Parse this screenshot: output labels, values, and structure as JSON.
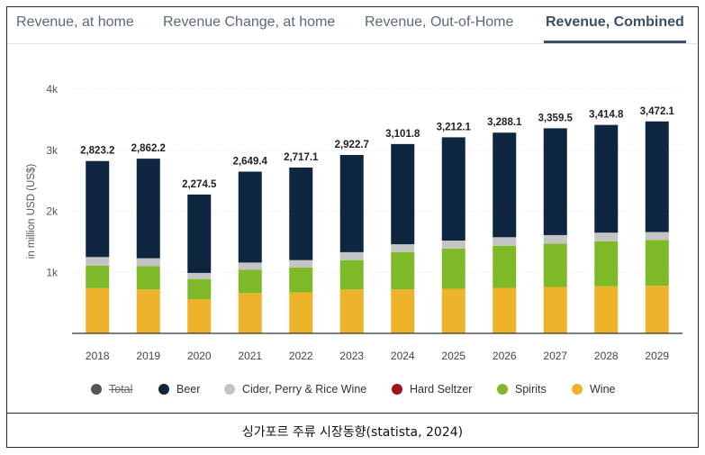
{
  "tabs": [
    {
      "label": "Revenue, at home",
      "active": false
    },
    {
      "label": "Revenue Change, at home",
      "active": false
    },
    {
      "label": "Revenue, Out-of-Home",
      "active": false
    },
    {
      "label": "Revenue, Combined",
      "active": true
    }
  ],
  "caption": "싱가포르 주류 시장동향(statista, 2024)",
  "colors": {
    "total": "#555555",
    "beer": "#0f2641",
    "cider": "#c4c4c4",
    "hard_seltzer": "#a1121a",
    "spirits": "#7eb928",
    "wine": "#edb32a"
  },
  "legend": [
    {
      "label": "Total",
      "color": "#555555",
      "struck": true
    },
    {
      "label": "Beer",
      "color": "#0f2641",
      "struck": false
    },
    {
      "label": "Cider, Perry & Rice Wine",
      "color": "#c4c4c4",
      "struck": false
    },
    {
      "label": "Hard Seltzer",
      "color": "#a1121a",
      "struck": false
    },
    {
      "label": "Spirits",
      "color": "#7eb928",
      "struck": false
    },
    {
      "label": "Wine",
      "color": "#edb32a",
      "struck": false
    }
  ],
  "chart_data": {
    "type": "bar",
    "stacked": true,
    "ylabel": "in million USD (US$)",
    "ylim": [
      0,
      4000
    ],
    "yticks": [
      {
        "value": 1000,
        "label": "1k"
      },
      {
        "value": 2000,
        "label": "2k"
      },
      {
        "value": 3000,
        "label": "3k"
      },
      {
        "value": 4000,
        "label": "4k"
      }
    ],
    "categories": [
      "2018",
      "2019",
      "2020",
      "2021",
      "2022",
      "2023",
      "2024",
      "2025",
      "2026",
      "2027",
      "2028",
      "2029"
    ],
    "totals_labels": [
      "2,823.2",
      "2,862.2",
      "2,274.5",
      "2,649.4",
      "2,717.1",
      "2,922.7",
      "3,101.8",
      "3,212.1",
      "3,288.1",
      "3,359.5",
      "3,414.8",
      "3,472.1"
    ],
    "totals": [
      2823.2,
      2862.2,
      2274.5,
      2649.4,
      2717.1,
      2922.7,
      3101.8,
      3212.1,
      3288.1,
      3359.5,
      3414.8,
      3472.1
    ],
    "series": [
      {
        "name": "Wine",
        "color": "#edb32a",
        "values": [
          740,
          720,
          560,
          660,
          670,
          720,
          720,
          730,
          745,
          760,
          770,
          780
        ]
      },
      {
        "name": "Spirits",
        "color": "#7eb928",
        "values": [
          370,
          380,
          330,
          380,
          410,
          480,
          610,
          660,
          690,
          710,
          740,
          750
        ]
      },
      {
        "name": "Hard Seltzer",
        "color": "#a1121a",
        "values": [
          0,
          0,
          0,
          0,
          0,
          0,
          0,
          0,
          0,
          0,
          0,
          0
        ]
      },
      {
        "name": "Cider, Perry & Rice Wine",
        "color": "#c4c4c4",
        "values": [
          140,
          130,
          100,
          120,
          120,
          130,
          130,
          130,
          140,
          140,
          140,
          130
        ]
      },
      {
        "name": "Beer",
        "color": "#0f2641",
        "values": [
          1573.2,
          1632.2,
          1284.5,
          1489.4,
          1517.1,
          1592.7,
          1641.8,
          1692.1,
          1713.1,
          1749.5,
          1764.8,
          1812.1
        ]
      }
    ]
  }
}
